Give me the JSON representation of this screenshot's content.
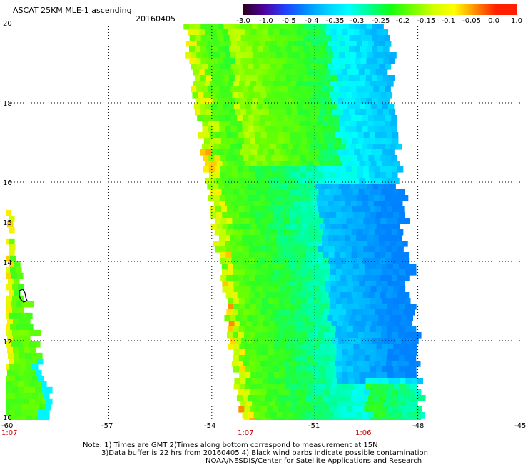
{
  "header": {
    "title": "ASCAT 25KM MLE-1 ascending",
    "date": "20160405"
  },
  "colorbar": {
    "labels": [
      "-3.0",
      "-1.0",
      "-0.5",
      "-0.4",
      "-0.35",
      "-0.3",
      "-0.25",
      "-0.2",
      "-0.15",
      "-0.1",
      "-0.05",
      "0.0",
      "1.0"
    ],
    "colors": [
      "#2a0020",
      "#5000a0",
      "#2040ff",
      "#0090ff",
      "#00d0ff",
      "#00ffff",
      "#00ff90",
      "#10ff10",
      "#70ff00",
      "#d0ff00",
      "#ffff00",
      "#ff9000",
      "#ff2000"
    ]
  },
  "axes": {
    "lat_labels": [
      "20",
      "18",
      "16",
      "15",
      "14",
      "12",
      "10"
    ],
    "lon_labels": [
      "-60",
      "-57",
      "-54",
      "-51",
      "-48",
      "-45"
    ],
    "pass_times": [
      "1:07",
      "1:07",
      "1:06"
    ]
  },
  "notes": {
    "line1": "Note: 1) Times are GMT 2)Times along bottom correspond to measurement at 15N",
    "line2": "3)Data buffer is 22 hrs from 20160405 4) Black wind barbs indicate possible contamination",
    "line3": "NOAA/NESDIS/Center for Satellite Applications and Research"
  },
  "map_data": {
    "type": "swath-grid",
    "lat_range": [
      10,
      20
    ],
    "lon_range": [
      -60,
      -45
    ],
    "grid": "dotted",
    "swaths": [
      {
        "name": "west",
        "lon_west_south": -60.0,
        "lon_west_north": -60.0,
        "lon_east_south": -58.7,
        "lon_east_north": -60.0,
        "lat_min": 10.0,
        "lat_max": 15.3
      },
      {
        "name": "east",
        "lon_west_south": -53.1,
        "lon_west_north": -54.8,
        "lon_east_south": -47.9,
        "lon_east_north": -49.0,
        "lat_min": 10.0,
        "lat_max": 20.0
      }
    ],
    "island_outline": "Barbados"
  }
}
